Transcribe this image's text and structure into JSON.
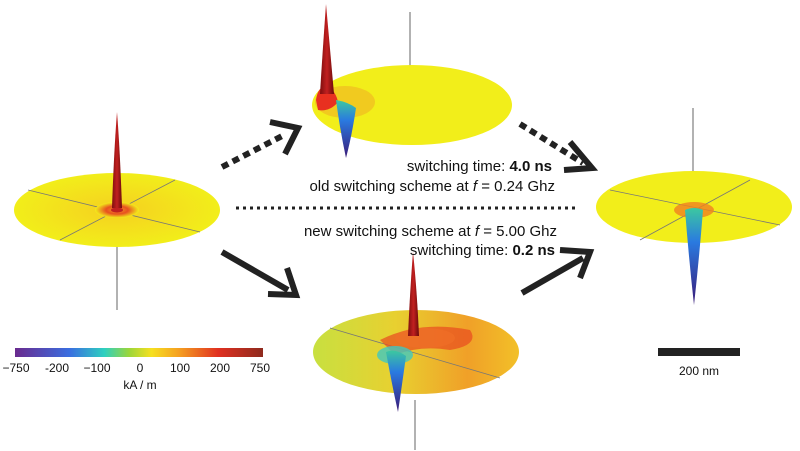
{
  "annotations": {
    "slow_time_prefix": "switching time: ",
    "slow_time_value": "4.0 ns",
    "old_scheme_prefix": "old switching scheme at ",
    "old_scheme_var": "f",
    "old_scheme_suffix": " = 0.24 Ghz",
    "new_scheme_prefix": "new switching scheme at ",
    "new_scheme_var": "f",
    "new_scheme_suffix": " = 5.00 Ghz",
    "fast_time_prefix": "switching time: ",
    "fast_time_value": "0.2 ns"
  },
  "colorbar": {
    "ticks": [
      "−750",
      "-200",
      "−100",
      "0",
      "100",
      "200",
      "750"
    ],
    "unit_label": "kA / m",
    "colors": [
      "#6a2a8e",
      "#3a6ee0",
      "#2ed0c0",
      "#9bd63a",
      "#f6e020",
      "#f5a020",
      "#e03020",
      "#8e2a1e"
    ]
  },
  "scalebar": {
    "label": "200 nm",
    "color": "#222222"
  },
  "colors": {
    "disk_base": "#f2ee1a",
    "spike_red": "#a81616",
    "arrow": "#222222"
  }
}
